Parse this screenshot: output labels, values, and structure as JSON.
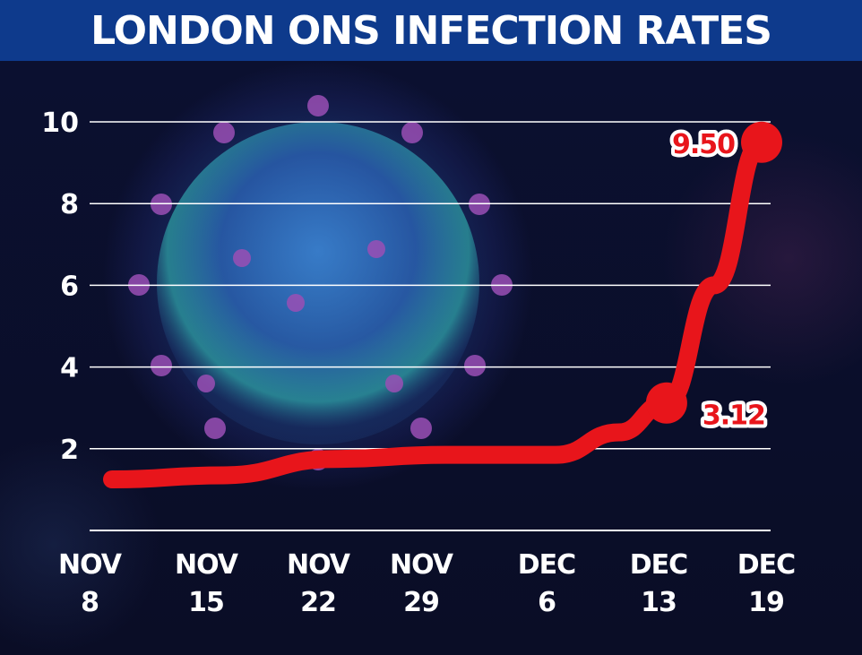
{
  "title": "LONDON ONS INFECTION RATES",
  "colors": {
    "title_bar": "#0e3a8c",
    "line": "#e8151b",
    "grid": "#ffffff",
    "background": "#0a0e2a"
  },
  "chart_data": {
    "type": "line",
    "title": "LONDON ONS INFECTION RATES",
    "xlabel": "",
    "ylabel": "",
    "grid": true,
    "ylim": [
      0,
      10
    ],
    "yticks": [
      "2",
      "4",
      "6",
      "8",
      "10"
    ],
    "x_tick_labels": [
      {
        "line1": "NOV",
        "line2": "8"
      },
      {
        "line1": "NOV",
        "line2": "15"
      },
      {
        "line1": "NOV",
        "line2": "22"
      },
      {
        "line1": "NOV",
        "line2": "29"
      },
      {
        "line1": "DEC",
        "line2": "6"
      },
      {
        "line1": "DEC",
        "line2": "13"
      },
      {
        "line1": "DEC",
        "line2": "19"
      }
    ],
    "series": [
      {
        "points": [
          {
            "x": "Nov 8",
            "y": 1.25
          },
          {
            "x": "Nov 15",
            "y": 1.35
          },
          {
            "x": "Nov 22",
            "y": 1.75
          },
          {
            "x": "Nov 29",
            "y": 1.85
          },
          {
            "x": "Dec 6",
            "y": 1.85
          },
          {
            "x": "Dec 10",
            "y": 2.4
          },
          {
            "x": "Dec 13",
            "y": 3.12
          },
          {
            "x": "Dec 16",
            "y": 6.0
          },
          {
            "x": "Dec 19",
            "y": 9.5
          }
        ]
      }
    ],
    "data_labels": [
      {
        "x": "Dec 13",
        "value": "3.12"
      },
      {
        "x": "Dec 19",
        "value": "9.50"
      }
    ]
  }
}
